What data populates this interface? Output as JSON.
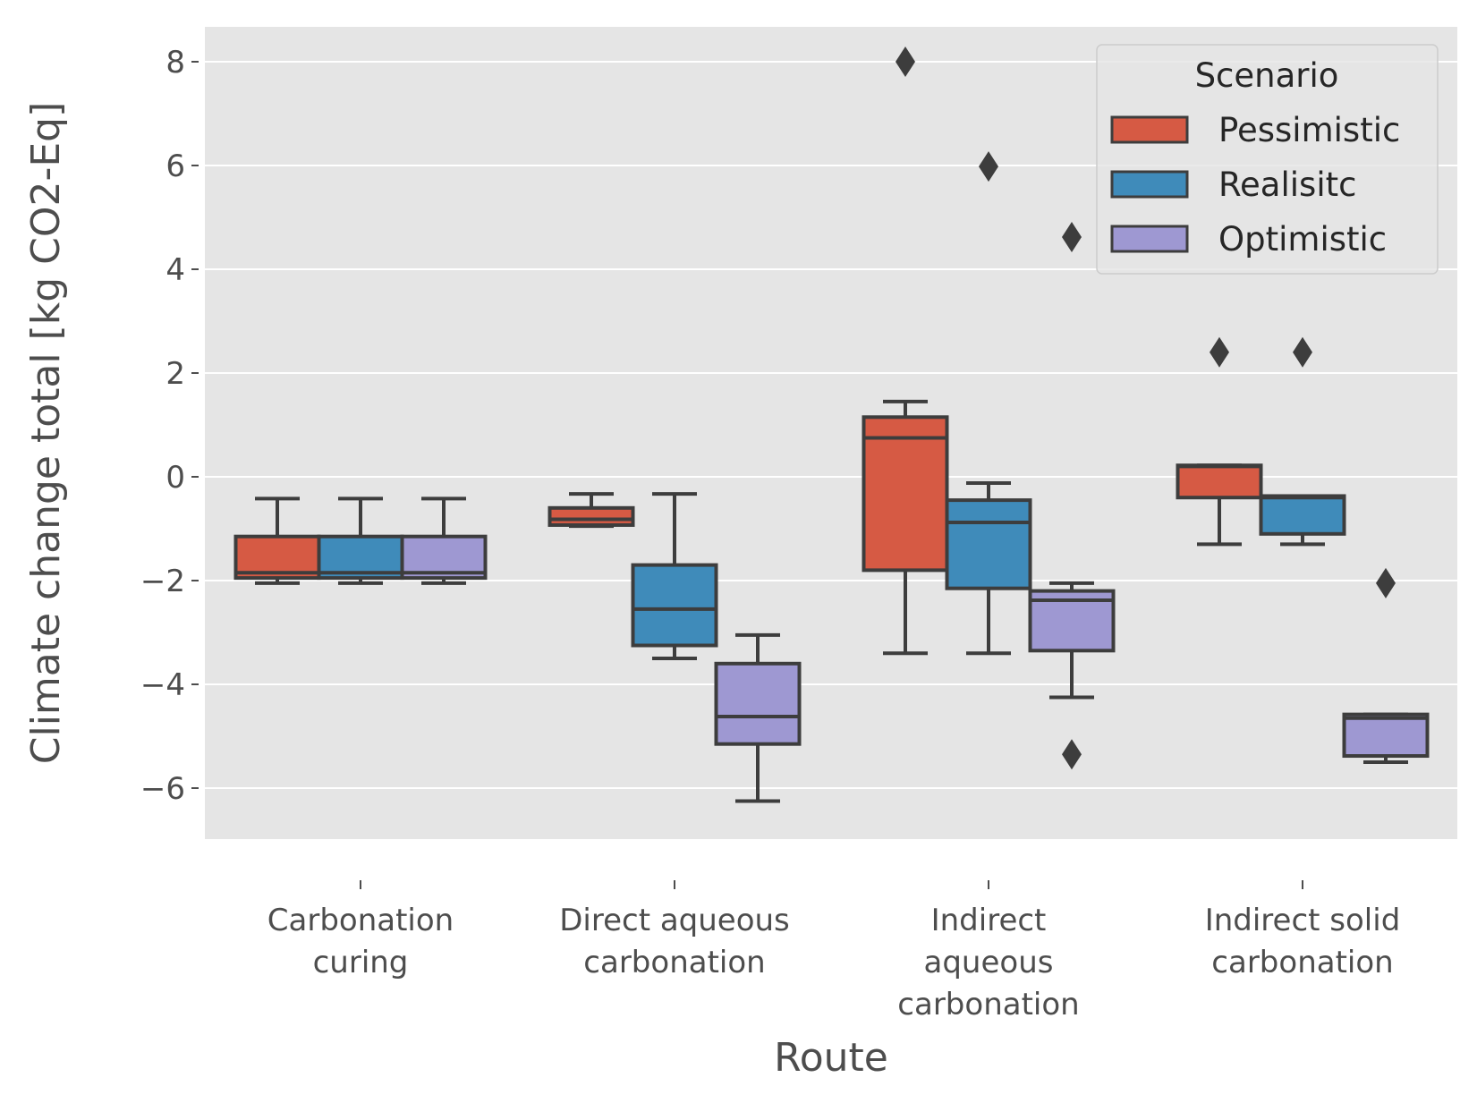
{
  "chart_data": {
    "type": "box",
    "title": "",
    "xlabel": "Route",
    "ylabel": "Climate change total [kg CO2-Eq]",
    "ylim": [
      -7.0,
      8.7
    ],
    "yticks": [
      -6,
      -4,
      -2,
      0,
      2,
      4,
      6,
      8
    ],
    "ytick_labels": [
      "−6",
      "−4",
      "−2",
      "0",
      "2",
      "4",
      "6",
      "8"
    ],
    "grid": true,
    "categories": [
      {
        "lines": [
          "Carbonation",
          "curing"
        ]
      },
      {
        "lines": [
          "Direct aqueous",
          "carbonation"
        ]
      },
      {
        "lines": [
          "Indirect",
          "aqueous",
          "carbonation"
        ]
      },
      {
        "lines": [
          "Indirect solid",
          "carbonation"
        ]
      }
    ],
    "legend": {
      "title": "Scenario",
      "position": "top-right"
    },
    "series": [
      {
        "name": "Pessimistic",
        "color": "#d65a44",
        "boxes": [
          {
            "whislo": -2.05,
            "q1": -1.95,
            "median": -1.85,
            "q3": -1.15,
            "whishi": -0.42,
            "fliers": []
          },
          {
            "whislo": -0.95,
            "q1": -0.93,
            "median": -0.82,
            "q3": -0.6,
            "whishi": -0.33,
            "fliers": []
          },
          {
            "whislo": -3.4,
            "q1": -1.8,
            "median": 0.75,
            "q3": 1.15,
            "whishi": 1.45,
            "fliers": [
              8.0
            ]
          },
          {
            "whislo": -1.3,
            "q1": -0.4,
            "median": 0.2,
            "q3": 0.22,
            "whishi": 0.22,
            "fliers": [
              2.4
            ]
          }
        ]
      },
      {
        "name": "Realisitc",
        "color": "#3f8bba",
        "boxes": [
          {
            "whislo": -2.05,
            "q1": -1.95,
            "median": -1.85,
            "q3": -1.15,
            "whishi": -0.42,
            "fliers": []
          },
          {
            "whislo": -3.5,
            "q1": -3.25,
            "median": -2.55,
            "q3": -1.7,
            "whishi": -0.33,
            "fliers": []
          },
          {
            "whislo": -3.4,
            "q1": -2.15,
            "median": -0.88,
            "q3": -0.45,
            "whishi": -0.12,
            "fliers": [
              5.98
            ]
          },
          {
            "whislo": -1.3,
            "q1": -1.1,
            "median": -0.4,
            "q3": -0.37,
            "whishi": -0.37,
            "fliers": [
              2.4
            ]
          }
        ]
      },
      {
        "name": "Optimistic",
        "color": "#9e98d2",
        "boxes": [
          {
            "whislo": -2.05,
            "q1": -1.95,
            "median": -1.85,
            "q3": -1.15,
            "whishi": -0.42,
            "fliers": []
          },
          {
            "whislo": -6.25,
            "q1": -5.15,
            "median": -4.62,
            "q3": -3.6,
            "whishi": -3.05,
            "fliers": []
          },
          {
            "whislo": -4.25,
            "q1": -3.35,
            "median": -2.38,
            "q3": -2.2,
            "whishi": -2.05,
            "fliers": [
              4.62,
              -5.35
            ]
          },
          {
            "whislo": -5.5,
            "q1": -5.38,
            "median": -4.65,
            "q3": -4.58,
            "whishi": -4.58,
            "fliers": [
              -2.05
            ]
          }
        ]
      }
    ]
  }
}
